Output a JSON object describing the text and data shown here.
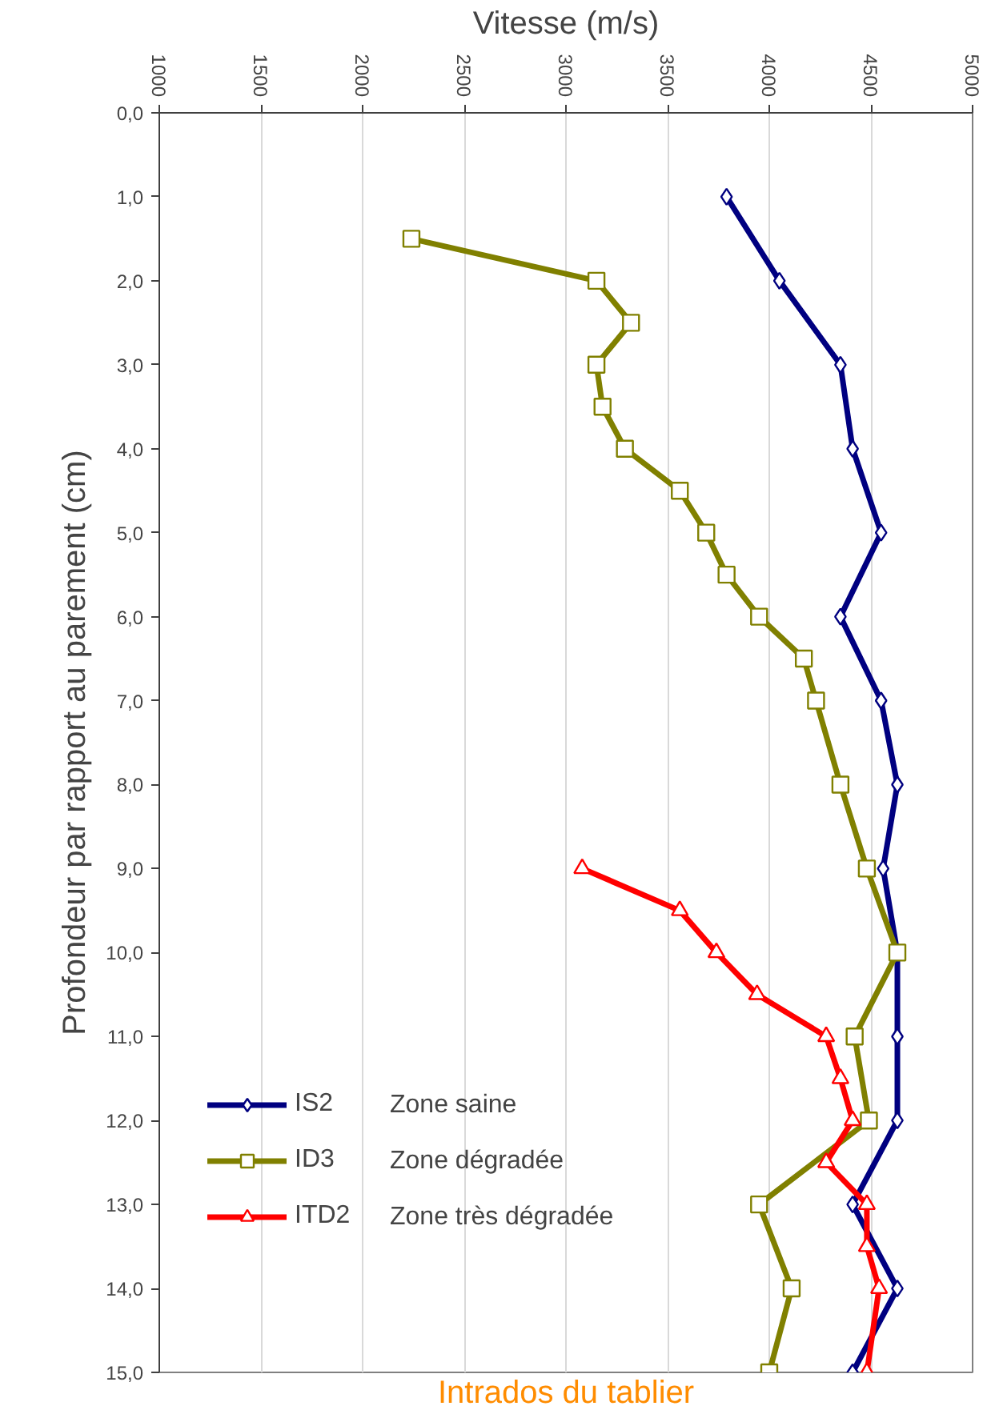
{
  "chart_data": {
    "type": "line",
    "xlabel": "Vitesse (m/s)",
    "ylabel": "Profondeur par rapport au parement (cm)",
    "xlim": [
      1000,
      5000
    ],
    "xticks": [
      1000,
      1500,
      2000,
      2500,
      3000,
      3500,
      4000,
      4500,
      5000
    ],
    "ylim": [
      15,
      0
    ],
    "yticks": [
      {
        "value": 0,
        "label": "0,0"
      },
      {
        "value": 1,
        "label": "1,0"
      },
      {
        "value": 2,
        "label": "2,0"
      },
      {
        "value": 3,
        "label": "3,0"
      },
      {
        "value": 4,
        "label": "4,0"
      },
      {
        "value": 5,
        "label": "5,0"
      },
      {
        "value": 6,
        "label": "6,0"
      },
      {
        "value": 7,
        "label": "7,0"
      },
      {
        "value": 8,
        "label": "8,0"
      },
      {
        "value": 9,
        "label": "9,0"
      },
      {
        "value": 10,
        "label": "10,0"
      },
      {
        "value": 11,
        "label": "11,0"
      },
      {
        "value": 12,
        "label": "12,0"
      },
      {
        "value": 13,
        "label": "13,0"
      },
      {
        "value": 14,
        "label": "14,0"
      },
      {
        "value": 15,
        "label": "15,0"
      }
    ],
    "grid": "x",
    "legend": "bottom left",
    "series": [
      {
        "name": "IS2",
        "color": "#000080",
        "marker": "diamond",
        "x": [
          3790,
          4050,
          4350,
          4410,
          4550,
          4350,
          4550,
          4630,
          4560,
          4630,
          4630,
          4630,
          4410,
          4630,
          4410
        ],
        "values": [
          1,
          2,
          3,
          4,
          5,
          6,
          7,
          8,
          9,
          10,
          11,
          12,
          13,
          14,
          15
        ]
      },
      {
        "name": "ID3",
        "color": "#808000",
        "marker": "square",
        "x": [
          2240,
          3150,
          3320,
          3150,
          3180,
          3290,
          3560,
          3690,
          3790,
          3950,
          4170,
          4230,
          4350,
          4480,
          4630,
          4420,
          4490,
          3950,
          4110,
          4000
        ],
        "values": [
          1.5,
          2,
          2.5,
          3,
          3.5,
          4,
          4.5,
          5,
          5.5,
          6,
          6.5,
          7,
          8,
          9,
          10,
          11,
          12,
          13,
          14,
          15
        ]
      },
      {
        "name": "ITD2",
        "color": "#ff0000",
        "marker": "triangle",
        "x": [
          3080,
          3560,
          3740,
          3940,
          4280,
          4350,
          4410,
          4280,
          4480,
          4480,
          4540,
          4480
        ],
        "values": [
          9,
          9.5,
          10,
          10.5,
          11,
          11.5,
          12,
          12.5,
          13,
          13.5,
          14,
          15
        ]
      }
    ],
    "annotations": [
      "Zone saine",
      "Zone dégradée",
      "Zone très dégradée",
      "Intrados du tablier"
    ]
  }
}
